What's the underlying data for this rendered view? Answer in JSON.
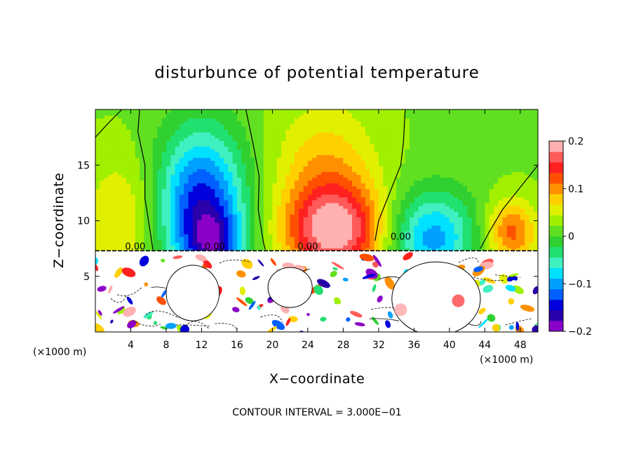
{
  "chart_data": {
    "type": "heatmap",
    "title": "disturbunce of potential temperature",
    "xlabel": "X−coordinate",
    "ylabel": "Z−coordinate",
    "x_unit_left": "(×1000 m)",
    "x_unit_right": "(×1000 m)",
    "footnote": "CONTOUR INTERVAL = 3.000E−01",
    "xlim": [
      0,
      50
    ],
    "ylim": [
      0,
      20
    ],
    "x_ticks": [
      4,
      8,
      12,
      16,
      20,
      24,
      28,
      32,
      36,
      40,
      44,
      48
    ],
    "y_ticks": [
      5,
      10,
      15
    ],
    "colorbar": {
      "range": [
        -0.2,
        0.2
      ],
      "tick_values": [
        -0.2,
        -0.1,
        0,
        0.1,
        0.2
      ],
      "tick_labels": [
        "−0.2",
        "−0.1",
        "0",
        "0.1",
        "0.2"
      ],
      "colors": [
        "#8b00c8",
        "#2a00aa",
        "#0000dc",
        "#0060ff",
        "#00a0ff",
        "#00e0ff",
        "#40f0c0",
        "#20e070",
        "#30d030",
        "#60e020",
        "#a0f000",
        "#e0f000",
        "#ffd000",
        "#ff9000",
        "#ff5000",
        "#ff2020",
        "#ff5a5a",
        "#ffb0b0"
      ]
    },
    "contour_labels": [
      "0.00",
      "0.00",
      "0.00",
      "0.00"
    ],
    "upper_features": [
      {
        "x": 12,
        "z": 11,
        "value": -0.17,
        "sx": 3.5,
        "sz": 5
      },
      {
        "x": 13.5,
        "z": 8,
        "value": -0.08,
        "sx": 2,
        "sz": 2
      },
      {
        "x": 27,
        "z": 9,
        "value": 0.17,
        "sx": 4,
        "sz": 3
      },
      {
        "x": 26,
        "z": 15,
        "value": 0.06,
        "sx": 4,
        "sz": 4
      },
      {
        "x": 38,
        "z": 8.5,
        "value": -0.12,
        "sx": 3.5,
        "sz": 3
      },
      {
        "x": 47,
        "z": 9,
        "value": 0.1,
        "sx": 2,
        "sz": 2
      },
      {
        "x": 3,
        "z": 10,
        "value": 0.05,
        "sx": 3,
        "sz": 4
      }
    ]
  }
}
